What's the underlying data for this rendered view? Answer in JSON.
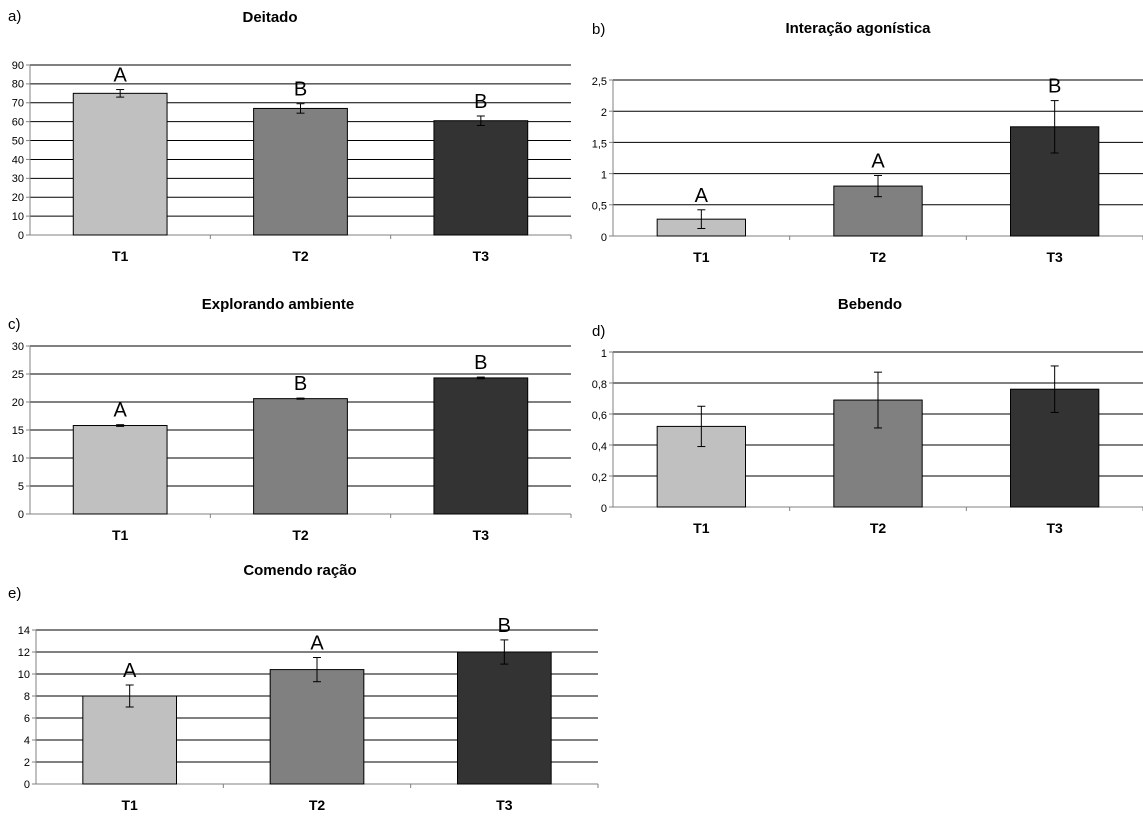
{
  "figure": {
    "colors": {
      "T1": "#c0c0c0",
      "T2": "#808080",
      "T3": "#333333",
      "grid": "#000000",
      "axis": "#808080"
    }
  },
  "chart_data": [
    {
      "panel": "a)",
      "type": "bar",
      "title": "Deitado",
      "categories": [
        "T1",
        "T2",
        "T3"
      ],
      "values": [
        75,
        67,
        60.5
      ],
      "errors": [
        2,
        2.5,
        2.5
      ],
      "significance": [
        "A",
        "B",
        "B"
      ],
      "ylim": [
        0,
        90
      ],
      "yticks": [
        "0",
        "10",
        "20",
        "30",
        "40",
        "50",
        "60",
        "70",
        "80",
        "90"
      ],
      "grid": true
    },
    {
      "panel": "b)",
      "type": "bar",
      "title": "Interação agonística",
      "categories": [
        "T1",
        "T2",
        "T3"
      ],
      "values": [
        0.27,
        0.8,
        1.75
      ],
      "errors": [
        0.15,
        0.17,
        0.42
      ],
      "significance": [
        "A",
        "A",
        "B"
      ],
      "ylim": [
        0,
        2.5
      ],
      "yticks": [
        "0",
        "0,5",
        "1",
        "1,5",
        "2",
        "2,5"
      ],
      "grid": true
    },
    {
      "panel": "c)",
      "type": "bar",
      "title": "Explorando ambiente",
      "categories": [
        "T1",
        "T2",
        "T3"
      ],
      "values": [
        15.8,
        20.6,
        24.3
      ],
      "errors": [
        0.15,
        0.1,
        0.15
      ],
      "significance": [
        "A",
        "B",
        "B"
      ],
      "ylim": [
        0,
        30
      ],
      "yticks": [
        "0",
        "5",
        "10",
        "15",
        "20",
        "25",
        "30"
      ],
      "grid": true
    },
    {
      "panel": "d)",
      "type": "bar",
      "title": "Bebendo",
      "categories": [
        "T1",
        "T2",
        "T3"
      ],
      "values": [
        0.52,
        0.69,
        0.76
      ],
      "errors": [
        0.13,
        0.18,
        0.15
      ],
      "significance": [
        "",
        "",
        ""
      ],
      "ylim": [
        0,
        1
      ],
      "yticks": [
        "0",
        "0,2",
        "0,4",
        "0,6",
        "0,8",
        "1"
      ],
      "grid": true
    },
    {
      "panel": "e)",
      "type": "bar",
      "title": "Comendo ração",
      "categories": [
        "T1",
        "T2",
        "T3"
      ],
      "values": [
        8,
        10.4,
        12
      ],
      "errors": [
        1,
        1.1,
        1.1
      ],
      "significance": [
        "A",
        "A",
        "B"
      ],
      "ylim": [
        0,
        14
      ],
      "yticks": [
        "0",
        "2",
        "4",
        "6",
        "8",
        "10",
        "12",
        "14"
      ],
      "grid": true
    }
  ]
}
